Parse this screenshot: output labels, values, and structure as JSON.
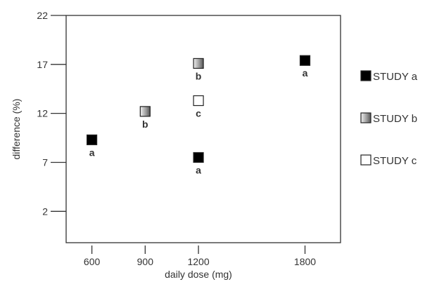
{
  "chart_data": {
    "type": "scatter",
    "title": "",
    "xlabel": "daily dose (mg)",
    "ylabel": "difference (%)",
    "xlim": [
      455,
      2000
    ],
    "ylim": [
      -1.2,
      22
    ],
    "xticks": [
      600,
      900,
      1200,
      1800
    ],
    "yticks": [
      2,
      7,
      12,
      17,
      22
    ],
    "grid": false,
    "legend_position": "right",
    "series": [
      {
        "name": "STUDY a",
        "label": "a",
        "style": "black",
        "points": [
          [
            600,
            9.3
          ],
          [
            1200,
            7.5
          ],
          [
            1800,
            17.4
          ]
        ]
      },
      {
        "name": "STUDY b",
        "label": "b",
        "style": "gradient",
        "points": [
          [
            900,
            12.2
          ],
          [
            1200,
            17.1
          ]
        ]
      },
      {
        "name": "STUDY c",
        "label": "c",
        "style": "white",
        "points": [
          [
            1200,
            13.3
          ]
        ]
      }
    ],
    "colors": {
      "a": "#000000",
      "b_light": "#e0e0e0",
      "b_dark": "#777777",
      "c": "#ffffff",
      "axis": "#333333"
    }
  }
}
